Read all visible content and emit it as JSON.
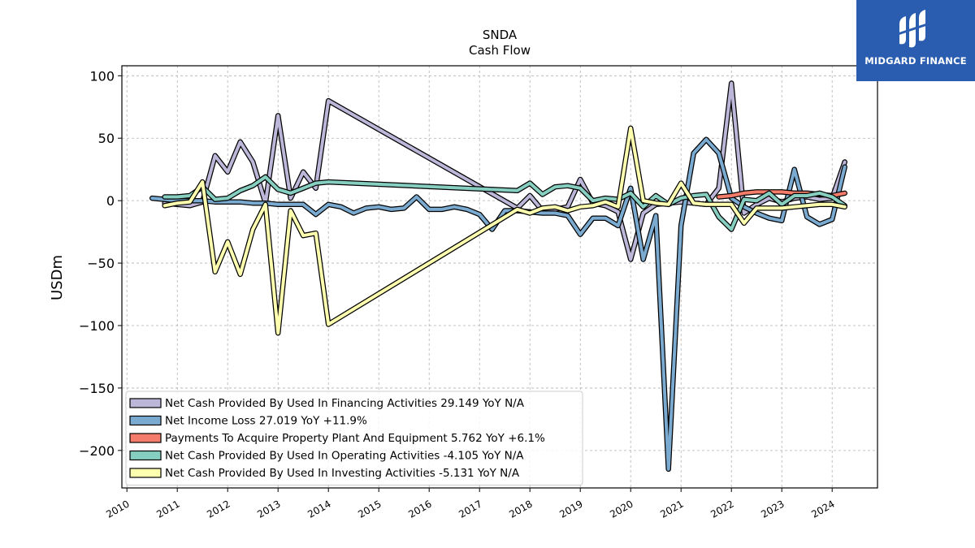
{
  "brand": {
    "name": "MIDGARD FINANCE",
    "color": "#2a5db0",
    "icon": "midgard-logo-icon"
  },
  "chart_data": {
    "type": "line",
    "title": "SNDA",
    "subtitle": "Cash Flow",
    "xlabel": "",
    "ylabel": "USDm",
    "xlim": [
      2009.9,
      2024.9
    ],
    "ylim": [
      -230,
      108
    ],
    "x_ticks": [
      "2010",
      "2011",
      "2012",
      "2013",
      "2014",
      "2015",
      "2016",
      "2017",
      "2018",
      "2019",
      "2020",
      "2021",
      "2022",
      "2023",
      "2024"
    ],
    "y_ticks": [
      100,
      50,
      0,
      -50,
      -100,
      -150,
      -200
    ],
    "y_tick_labels": [
      "100",
      "50",
      "0",
      "−50",
      "−100",
      "−150",
      "−200"
    ],
    "grid": true,
    "legend_position": "lower-left",
    "series": [
      {
        "name": "Net Cash Provided By Used In Financing Activities  29.149 YoY N/A",
        "color": "#bcb7d8",
        "points": [
          [
            2010.75,
            -2
          ],
          [
            2011.0,
            -3
          ],
          [
            2011.25,
            -4
          ],
          [
            2011.5,
            -1
          ],
          [
            2011.75,
            36
          ],
          [
            2012.0,
            23
          ],
          [
            2012.25,
            47
          ],
          [
            2012.5,
            31
          ],
          [
            2012.75,
            -2
          ],
          [
            2013.0,
            68
          ],
          [
            2013.25,
            2
          ],
          [
            2013.5,
            23
          ],
          [
            2013.75,
            10
          ],
          [
            2014.0,
            80
          ],
          [
            2017.75,
            -6
          ],
          [
            2018.0,
            4
          ],
          [
            2018.25,
            -8
          ],
          [
            2018.5,
            -7
          ],
          [
            2018.75,
            -5
          ],
          [
            2019.0,
            17
          ],
          [
            2019.25,
            -2
          ],
          [
            2019.5,
            -4
          ],
          [
            2019.75,
            -9
          ],
          [
            2020.0,
            -47
          ],
          [
            2020.25,
            -10
          ],
          [
            2020.5,
            -3
          ],
          [
            2020.75,
            -2
          ],
          [
            2021.0,
            -1
          ],
          [
            2021.25,
            -2
          ],
          [
            2021.5,
            -3
          ],
          [
            2021.75,
            10
          ],
          [
            2022.0,
            94
          ],
          [
            2022.25,
            -10
          ],
          [
            2022.5,
            -3
          ],
          [
            2022.75,
            2
          ],
          [
            2023.0,
            -1
          ],
          [
            2023.25,
            2
          ],
          [
            2023.5,
            3
          ],
          [
            2023.75,
            1
          ],
          [
            2024.0,
            2
          ],
          [
            2024.25,
            31
          ]
        ]
      },
      {
        "name": "Net Income Loss  27.019 YoY +11.9%",
        "color": "#7aaad0",
        "points": [
          [
            2010.5,
            2
          ],
          [
            2010.75,
            1
          ],
          [
            2011.0,
            0
          ],
          [
            2011.25,
            0
          ],
          [
            2011.5,
            0
          ],
          [
            2011.75,
            -1
          ],
          [
            2012.0,
            -1
          ],
          [
            2012.25,
            -1
          ],
          [
            2012.5,
            -2
          ],
          [
            2012.75,
            -2
          ],
          [
            2013.0,
            -3
          ],
          [
            2013.25,
            -3
          ],
          [
            2013.5,
            -3
          ],
          [
            2013.75,
            -11
          ],
          [
            2014.0,
            -3
          ],
          [
            2014.25,
            -5
          ],
          [
            2014.5,
            -10
          ],
          [
            2014.75,
            -6
          ],
          [
            2015.0,
            -5
          ],
          [
            2015.25,
            -7
          ],
          [
            2015.5,
            -6
          ],
          [
            2015.75,
            3
          ],
          [
            2016.0,
            -7
          ],
          [
            2016.25,
            -7
          ],
          [
            2016.5,
            -5
          ],
          [
            2016.75,
            -7
          ],
          [
            2017.0,
            -11
          ],
          [
            2017.25,
            -23
          ],
          [
            2017.5,
            -8
          ],
          [
            2017.75,
            -8
          ],
          [
            2018.0,
            -9
          ],
          [
            2018.25,
            -10
          ],
          [
            2018.5,
            -10
          ],
          [
            2018.75,
            -12
          ],
          [
            2019.0,
            -27
          ],
          [
            2019.25,
            -14
          ],
          [
            2019.5,
            -14
          ],
          [
            2019.75,
            -20
          ],
          [
            2020.0,
            10
          ],
          [
            2020.25,
            -47
          ],
          [
            2020.5,
            -12
          ],
          [
            2020.75,
            -215
          ],
          [
            2021.0,
            -20
          ],
          [
            2021.25,
            38
          ],
          [
            2021.5,
            49
          ],
          [
            2021.75,
            38
          ],
          [
            2022.0,
            2
          ],
          [
            2022.25,
            -5
          ],
          [
            2022.5,
            -10
          ],
          [
            2022.75,
            -14
          ],
          [
            2023.0,
            -16
          ],
          [
            2023.25,
            25
          ],
          [
            2023.5,
            -13
          ],
          [
            2023.75,
            -19
          ],
          [
            2024.0,
            -15
          ],
          [
            2024.25,
            27
          ]
        ]
      },
      {
        "name": "Payments To Acquire Property Plant And Equipment  5.762 YoY +6.1%",
        "color": "#f47c6b",
        "points": [
          [
            2021.75,
            3
          ],
          [
            2022.0,
            4
          ],
          [
            2022.25,
            6
          ],
          [
            2022.5,
            7
          ],
          [
            2022.75,
            7
          ],
          [
            2023.0,
            7
          ],
          [
            2023.25,
            6
          ],
          [
            2023.5,
            6
          ],
          [
            2023.75,
            5
          ],
          [
            2024.0,
            4
          ],
          [
            2024.25,
            6
          ]
        ]
      },
      {
        "name": "Net Cash Provided By Used In Operating Activities  -4.105 YoY N/A",
        "color": "#86cfc0",
        "points": [
          [
            2010.75,
            3
          ],
          [
            2011.0,
            3
          ],
          [
            2011.25,
            4
          ],
          [
            2011.5,
            11
          ],
          [
            2011.75,
            1
          ],
          [
            2012.0,
            2
          ],
          [
            2012.25,
            8
          ],
          [
            2012.5,
            12
          ],
          [
            2012.75,
            19
          ],
          [
            2013.0,
            9
          ],
          [
            2013.25,
            6
          ],
          [
            2013.5,
            10
          ],
          [
            2013.75,
            14
          ],
          [
            2014.0,
            15
          ],
          [
            2017.75,
            8
          ],
          [
            2018.0,
            14
          ],
          [
            2018.25,
            5
          ],
          [
            2018.5,
            11
          ],
          [
            2018.75,
            12
          ],
          [
            2019.0,
            10
          ],
          [
            2019.25,
            0
          ],
          [
            2019.5,
            2
          ],
          [
            2019.75,
            1
          ],
          [
            2020.0,
            6
          ],
          [
            2020.25,
            -5
          ],
          [
            2020.5,
            4
          ],
          [
            2020.75,
            -3
          ],
          [
            2021.0,
            2
          ],
          [
            2021.25,
            4
          ],
          [
            2021.5,
            5
          ],
          [
            2021.75,
            -13
          ],
          [
            2022.0,
            -23
          ],
          [
            2022.25,
            1
          ],
          [
            2022.5,
            0
          ],
          [
            2022.75,
            6
          ],
          [
            2023.0,
            -3
          ],
          [
            2023.25,
            4
          ],
          [
            2023.5,
            4
          ],
          [
            2023.75,
            6
          ],
          [
            2024.0,
            3
          ],
          [
            2024.25,
            -4
          ]
        ]
      },
      {
        "name": "Net Cash Provided By Used In Investing Activities  -5.131 YoY N/A",
        "color": "#ffffb0",
        "points": [
          [
            2010.75,
            -4
          ],
          [
            2011.0,
            -2
          ],
          [
            2011.25,
            -1
          ],
          [
            2011.5,
            15
          ],
          [
            2011.75,
            -57
          ],
          [
            2012.0,
            -33
          ],
          [
            2012.25,
            -59
          ],
          [
            2012.5,
            -23
          ],
          [
            2012.75,
            -3
          ],
          [
            2013.0,
            -106
          ],
          [
            2013.25,
            -8
          ],
          [
            2013.5,
            -28
          ],
          [
            2013.75,
            -26
          ],
          [
            2014.0,
            -99
          ],
          [
            2017.75,
            -7
          ],
          [
            2018.0,
            -10
          ],
          [
            2018.25,
            -6
          ],
          [
            2018.5,
            -5
          ],
          [
            2018.75,
            -8
          ],
          [
            2019.0,
            -5
          ],
          [
            2019.25,
            -4
          ],
          [
            2019.5,
            -1
          ],
          [
            2019.75,
            -5
          ],
          [
            2020.0,
            58
          ],
          [
            2020.25,
            0
          ],
          [
            2020.5,
            -2
          ],
          [
            2020.75,
            -3
          ],
          [
            2021.0,
            14
          ],
          [
            2021.25,
            -2
          ],
          [
            2021.5,
            -3
          ],
          [
            2021.75,
            -3
          ],
          [
            2022.0,
            -3
          ],
          [
            2022.25,
            -18
          ],
          [
            2022.5,
            -6
          ],
          [
            2022.75,
            -6
          ],
          [
            2023.0,
            -6
          ],
          [
            2023.25,
            -5
          ],
          [
            2023.5,
            -4
          ],
          [
            2023.75,
            -3
          ],
          [
            2024.0,
            -3
          ],
          [
            2024.25,
            -5
          ]
        ]
      }
    ]
  }
}
